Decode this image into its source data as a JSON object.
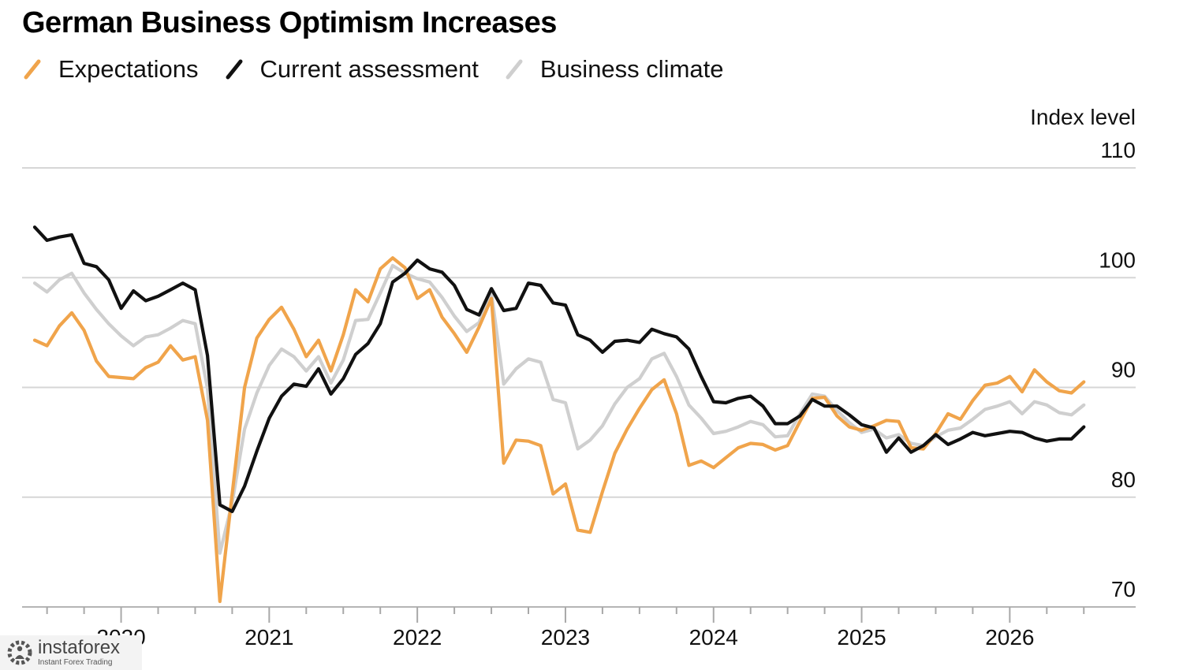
{
  "chart_data": {
    "type": "line",
    "title": "German Business Optimism Increases",
    "ylabel": "Index level",
    "ylim": [
      70,
      110
    ],
    "yticks": [
      70,
      80,
      90,
      100,
      110
    ],
    "x_start": "2019-06",
    "x_step": "month",
    "xticks": [
      "2020",
      "2021",
      "2022",
      "2023",
      "2024",
      "2025",
      "2026"
    ],
    "grid": true,
    "legend_position": "top-left",
    "series": [
      {
        "name": "Expectations",
        "color": "#f0a44b",
        "values": [
          94.3,
          93.8,
          95.6,
          96.8,
          95.2,
          92.4,
          91.0,
          90.9,
          90.8,
          91.8,
          92.3,
          93.8,
          92.5,
          92.8,
          87.0,
          70.5,
          80.3,
          90.0,
          94.5,
          96.2,
          97.3,
          95.3,
          92.8,
          94.3,
          91.5,
          94.8,
          98.9,
          97.8,
          100.8,
          101.8,
          100.9,
          98.1,
          98.9,
          96.4,
          94.9,
          93.2,
          95.5,
          98.1,
          83.1,
          85.2,
          85.1,
          84.7,
          80.3,
          81.2,
          77.0,
          76.8,
          80.5,
          84.0,
          86.2,
          88.1,
          89.8,
          90.7,
          87.6,
          82.9,
          83.3,
          82.7,
          83.6,
          84.5,
          84.9,
          84.8,
          84.3,
          84.7,
          86.9,
          89.0,
          89.1,
          87.4,
          86.4,
          86.1,
          86.5,
          87.0,
          86.9,
          84.5,
          84.4,
          85.8,
          87.6,
          87.1,
          88.8,
          90.2,
          90.4,
          91.0,
          89.6,
          91.6,
          90.5,
          89.7,
          89.5,
          90.5
        ]
      },
      {
        "name": "Current assessment",
        "color": "#111111",
        "values": [
          104.6,
          103.4,
          103.7,
          103.9,
          101.3,
          101.0,
          99.8,
          97.2,
          98.8,
          97.9,
          98.3,
          98.9,
          99.5,
          98.9,
          92.9,
          79.3,
          78.7,
          81.0,
          84.2,
          87.2,
          89.2,
          90.3,
          90.1,
          91.7,
          89.4,
          90.8,
          93.0,
          94.0,
          95.8,
          99.6,
          100.4,
          101.6,
          100.8,
          100.5,
          99.3,
          97.1,
          96.6,
          99.0,
          97.0,
          97.2,
          99.5,
          99.3,
          97.7,
          97.5,
          94.8,
          94.3,
          93.2,
          94.2,
          94.3,
          94.1,
          95.3,
          94.9,
          94.6,
          93.5,
          91.0,
          88.7,
          88.6,
          89.0,
          89.2,
          88.3,
          86.7,
          86.7,
          87.4,
          88.9,
          88.3,
          88.3,
          87.5,
          86.6,
          86.3,
          84.1,
          85.4,
          84.1,
          84.7,
          85.7,
          84.8,
          85.3,
          85.9,
          85.6,
          85.8,
          86.0,
          85.9,
          85.4,
          85.1,
          85.3,
          85.3,
          86.4
        ]
      },
      {
        "name": "Business climate",
        "color": "#cfcfcf",
        "values": [
          99.5,
          98.7,
          99.8,
          100.4,
          98.6,
          97.1,
          95.8,
          94.7,
          93.8,
          94.6,
          94.8,
          95.4,
          96.1,
          95.8,
          89.9,
          74.9,
          79.5,
          86.2,
          89.5,
          92.0,
          93.5,
          92.8,
          91.5,
          92.8,
          90.4,
          92.5,
          96.1,
          96.2,
          98.6,
          101.1,
          100.4,
          99.9,
          99.6,
          98.2,
          96.5,
          95.1,
          95.9,
          98.6,
          90.3,
          91.7,
          92.6,
          92.3,
          88.9,
          88.6,
          84.4,
          85.2,
          86.5,
          88.5,
          90.0,
          90.8,
          92.6,
          93.1,
          91.0,
          88.4,
          87.2,
          85.8,
          86.0,
          86.4,
          86.9,
          86.6,
          85.5,
          85.6,
          87.6,
          89.4,
          89.2,
          87.9,
          86.8,
          85.9,
          86.2,
          85.4,
          85.7,
          84.9,
          84.7,
          85.5,
          86.1,
          86.3,
          87.1,
          88.0,
          88.3,
          88.7,
          87.6,
          88.7,
          88.4,
          87.7,
          87.5,
          88.4
        ]
      }
    ]
  },
  "watermark": {
    "brand": "instaforex",
    "tagline": "Instant Forex Trading",
    "logo_icon": "gear-person-logo-icon"
  }
}
